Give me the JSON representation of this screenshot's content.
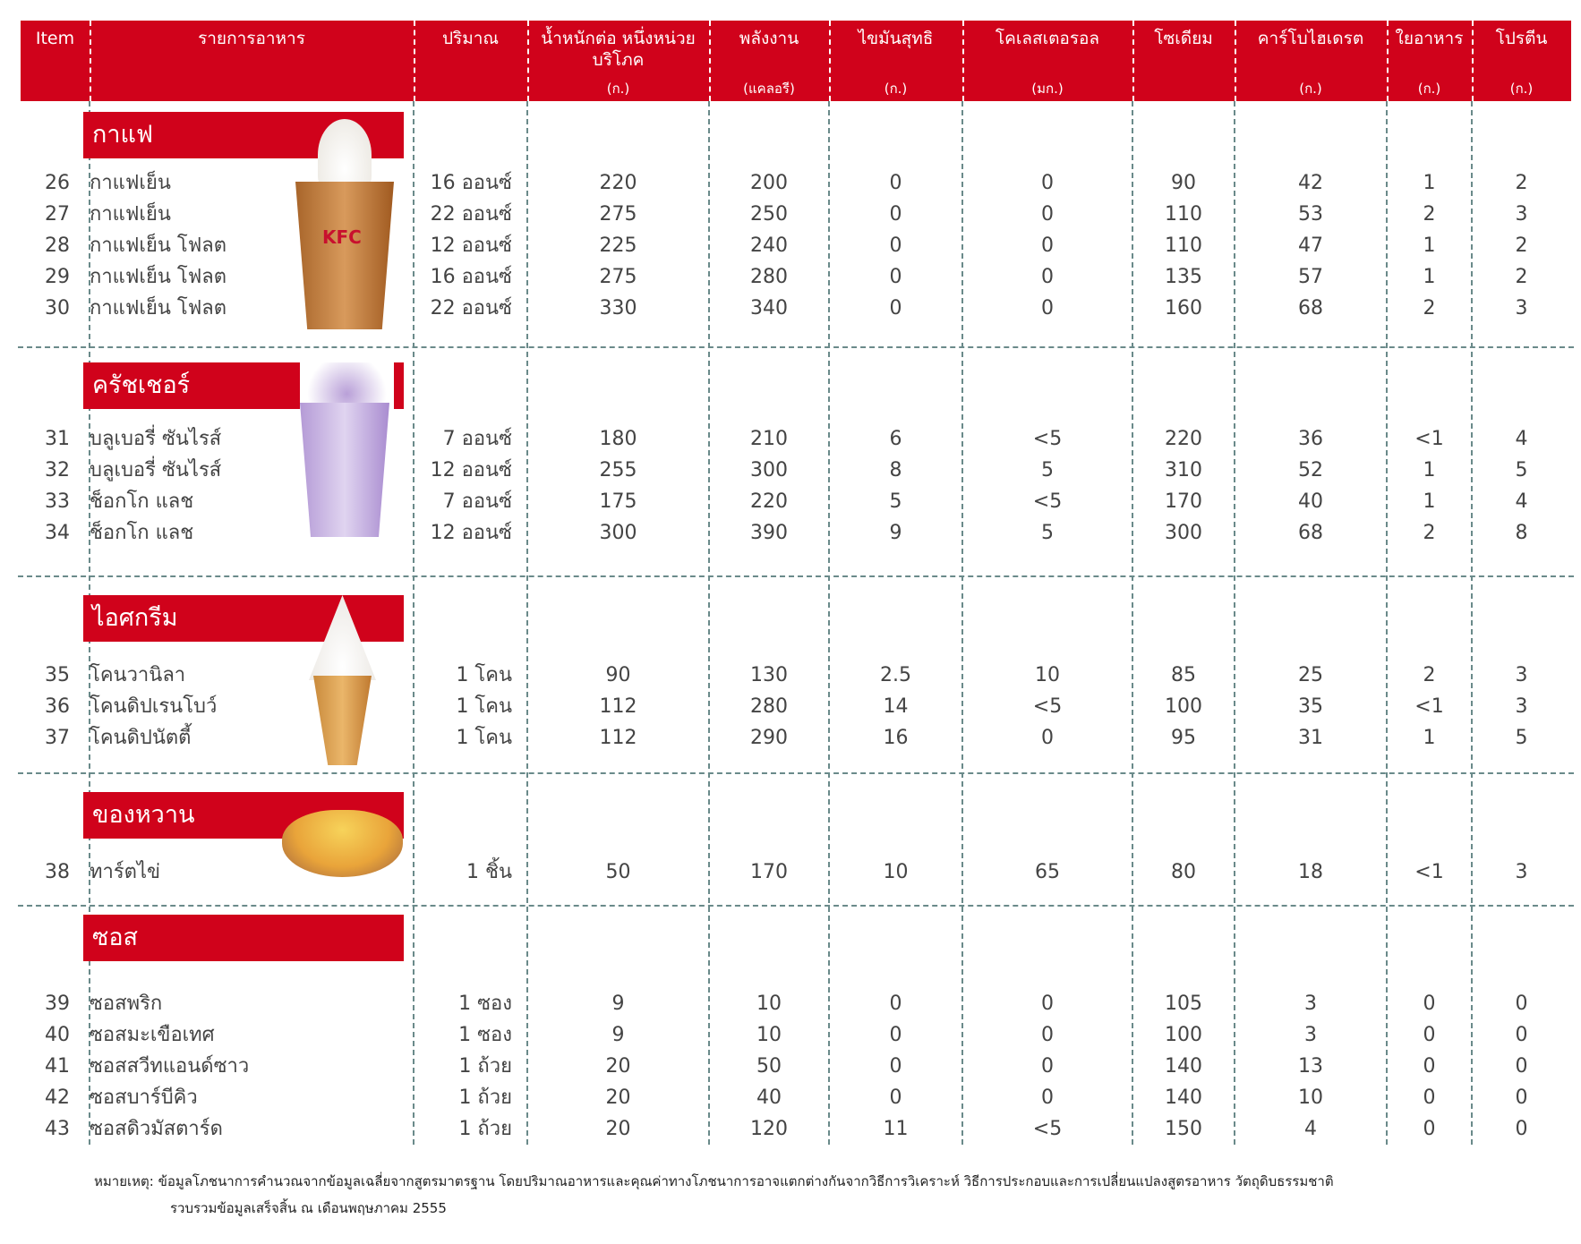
{
  "colors": {
    "accent": "#d0021b"
  },
  "header": [
    {
      "title": "Item",
      "unit": ""
    },
    {
      "title": "รายการอาหาร",
      "unit": ""
    },
    {
      "title": "ปริมาณ",
      "unit": ""
    },
    {
      "title": "น้ำหนักต่อ หนึ่งหน่วยบริโภค",
      "unit": "(ก.)"
    },
    {
      "title": "พลังงาน",
      "unit": "(แคลอรี)"
    },
    {
      "title": "ไขมันสุทธิ",
      "unit": "(ก.)"
    },
    {
      "title": "โคเลสเตอรอล",
      "unit": "(มก.)"
    },
    {
      "title": "โซเดียม",
      "unit": ""
    },
    {
      "title": "คาร์โบไฮเดรต",
      "unit": "(ก.)"
    },
    {
      "title": "ใยอาหาร",
      "unit": "(ก.)"
    },
    {
      "title": "โปรตีน",
      "unit": "(ก.)"
    }
  ],
  "sections": [
    {
      "title": "กาแฟ",
      "image": "kfc-iced-coffee-float-image",
      "rows": [
        [
          "26",
          "กาแฟเย็น",
          "16 ออนซ์",
          "220",
          "200",
          "0",
          "0",
          "90",
          "42",
          "1",
          "2"
        ],
        [
          "27",
          "กาแฟเย็น",
          "22 ออนซ์",
          "275",
          "250",
          "0",
          "0",
          "110",
          "53",
          "2",
          "3"
        ],
        [
          "28",
          "กาแฟเย็น โฟลต",
          "12 ออนซ์",
          "225",
          "240",
          "0",
          "0",
          "110",
          "47",
          "1",
          "2"
        ],
        [
          "29",
          "กาแฟเย็น โฟลต",
          "16 ออนซ์",
          "275",
          "280",
          "0",
          "0",
          "135",
          "57",
          "1",
          "2"
        ],
        [
          "30",
          "กาแฟเย็น โฟลต",
          "22 ออนซ์",
          "330",
          "340",
          "0",
          "0",
          "160",
          "68",
          "2",
          "3"
        ]
      ]
    },
    {
      "title": "ครัชเชอร์",
      "image": "blueberry-crusher-image",
      "rows": [
        [
          "31",
          "บลูเบอรี่ ซันไรส์",
          "7 ออนซ์",
          "180",
          "210",
          "6",
          "<5",
          "220",
          "36",
          "<1",
          "4"
        ],
        [
          "32",
          "บลูเบอรี่ ซันไรส์",
          "12 ออนซ์",
          "255",
          "300",
          "8",
          "5",
          "310",
          "52",
          "1",
          "5"
        ],
        [
          "33",
          "ช็อกโก แลช",
          "7 ออนซ์",
          "175",
          "220",
          "5",
          "<5",
          "170",
          "40",
          "1",
          "4"
        ],
        [
          "34",
          "ช็อกโก แลช",
          "12 ออนซ์",
          "300",
          "390",
          "9",
          "5",
          "300",
          "68",
          "2",
          "8"
        ]
      ]
    },
    {
      "title": "ไอศกรีม",
      "image": "ice-cream-cone-image",
      "rows": [
        [
          "35",
          "โคนวานิลา",
          "1 โคน",
          "90",
          "130",
          "2.5",
          "10",
          "85",
          "25",
          "2",
          "3"
        ],
        [
          "36",
          "โคนดิปเรนโบว์",
          "1 โคน",
          "112",
          "280",
          "14",
          "<5",
          "100",
          "35",
          "<1",
          "3"
        ],
        [
          "37",
          "โคนดิปนัตตี้",
          "1 โคน",
          "112",
          "290",
          "16",
          "0",
          "95",
          "31",
          "1",
          "5"
        ]
      ]
    },
    {
      "title": "ของหวาน",
      "image": "egg-tart-image",
      "rows": [
        [
          "38",
          "ทาร์ตไข่",
          "1 ชิ้น",
          "50",
          "170",
          "10",
          "65",
          "80",
          "18",
          "<1",
          "3"
        ]
      ]
    },
    {
      "title": "ซอส",
      "image": "",
      "rows": [
        [
          "39",
          "ซอสพริก",
          "1 ซอง",
          "9",
          "10",
          "0",
          "0",
          "105",
          "3",
          "0",
          "0"
        ],
        [
          "40",
          "ซอสมะเขือเทศ",
          "1 ซอง",
          "9",
          "10",
          "0",
          "0",
          "100",
          "3",
          "0",
          "0"
        ],
        [
          "41",
          "ซอสสวีทแอนด์ซาว",
          "1 ถ้วย",
          "20",
          "50",
          "0",
          "0",
          "140",
          "13",
          "0",
          "0"
        ],
        [
          "42",
          "ซอสบาร์บีคิว",
          "1 ถ้วย",
          "20",
          "40",
          "0",
          "0",
          "140",
          "10",
          "0",
          "0"
        ],
        [
          "43",
          "ซอสดิวมัสตาร์ด",
          "1 ถ้วย",
          "20",
          "120",
          "11",
          "<5",
          "150",
          "4",
          "0",
          "0"
        ]
      ]
    }
  ],
  "footnote": {
    "line1": "หมายเหตุ: ข้อมูลโภชนาการคำนวณจากข้อมูลเฉลี่ยจากสูตรมาตรฐาน โดยปริมาณอาหารและคุณค่าทางโภชนาการอาจแตกต่างกันจากวิธีการวิเคราะห์ วิธีการประกอบและการเปลี่ยนแปลงสูตรอาหาร วัตถุดิบธรรมชาติ",
    "line2": "รวบรวมข้อมูลเสร็จสิ้น ณ เดือนพฤษภาคม 2555"
  }
}
